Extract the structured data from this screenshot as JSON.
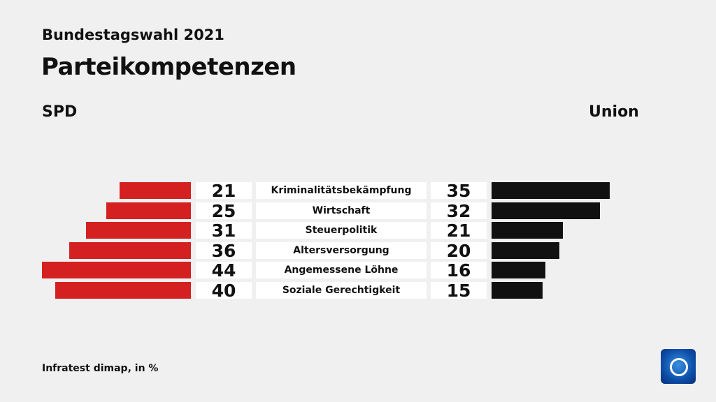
{
  "header": {
    "supertitle": "Bundestagswahl 2021",
    "title": "Parteikompetenzen"
  },
  "source": "Infratest dimap, in %",
  "chart_data": {
    "type": "bar",
    "categories": [
      "Kriminalitätsbekämpfung",
      "Wirtschaft",
      "Steuerpolitik",
      "Altersversorgung",
      "Angemessene Löhne",
      "Soziale Gerechtigkeit"
    ],
    "series": [
      {
        "name": "SPD",
        "values": [
          21,
          25,
          31,
          36,
          44,
          40
        ],
        "color": "#d42020"
      },
      {
        "name": "Union",
        "values": [
          35,
          32,
          21,
          20,
          16,
          15
        ],
        "color": "#111111"
      }
    ]
  }
}
